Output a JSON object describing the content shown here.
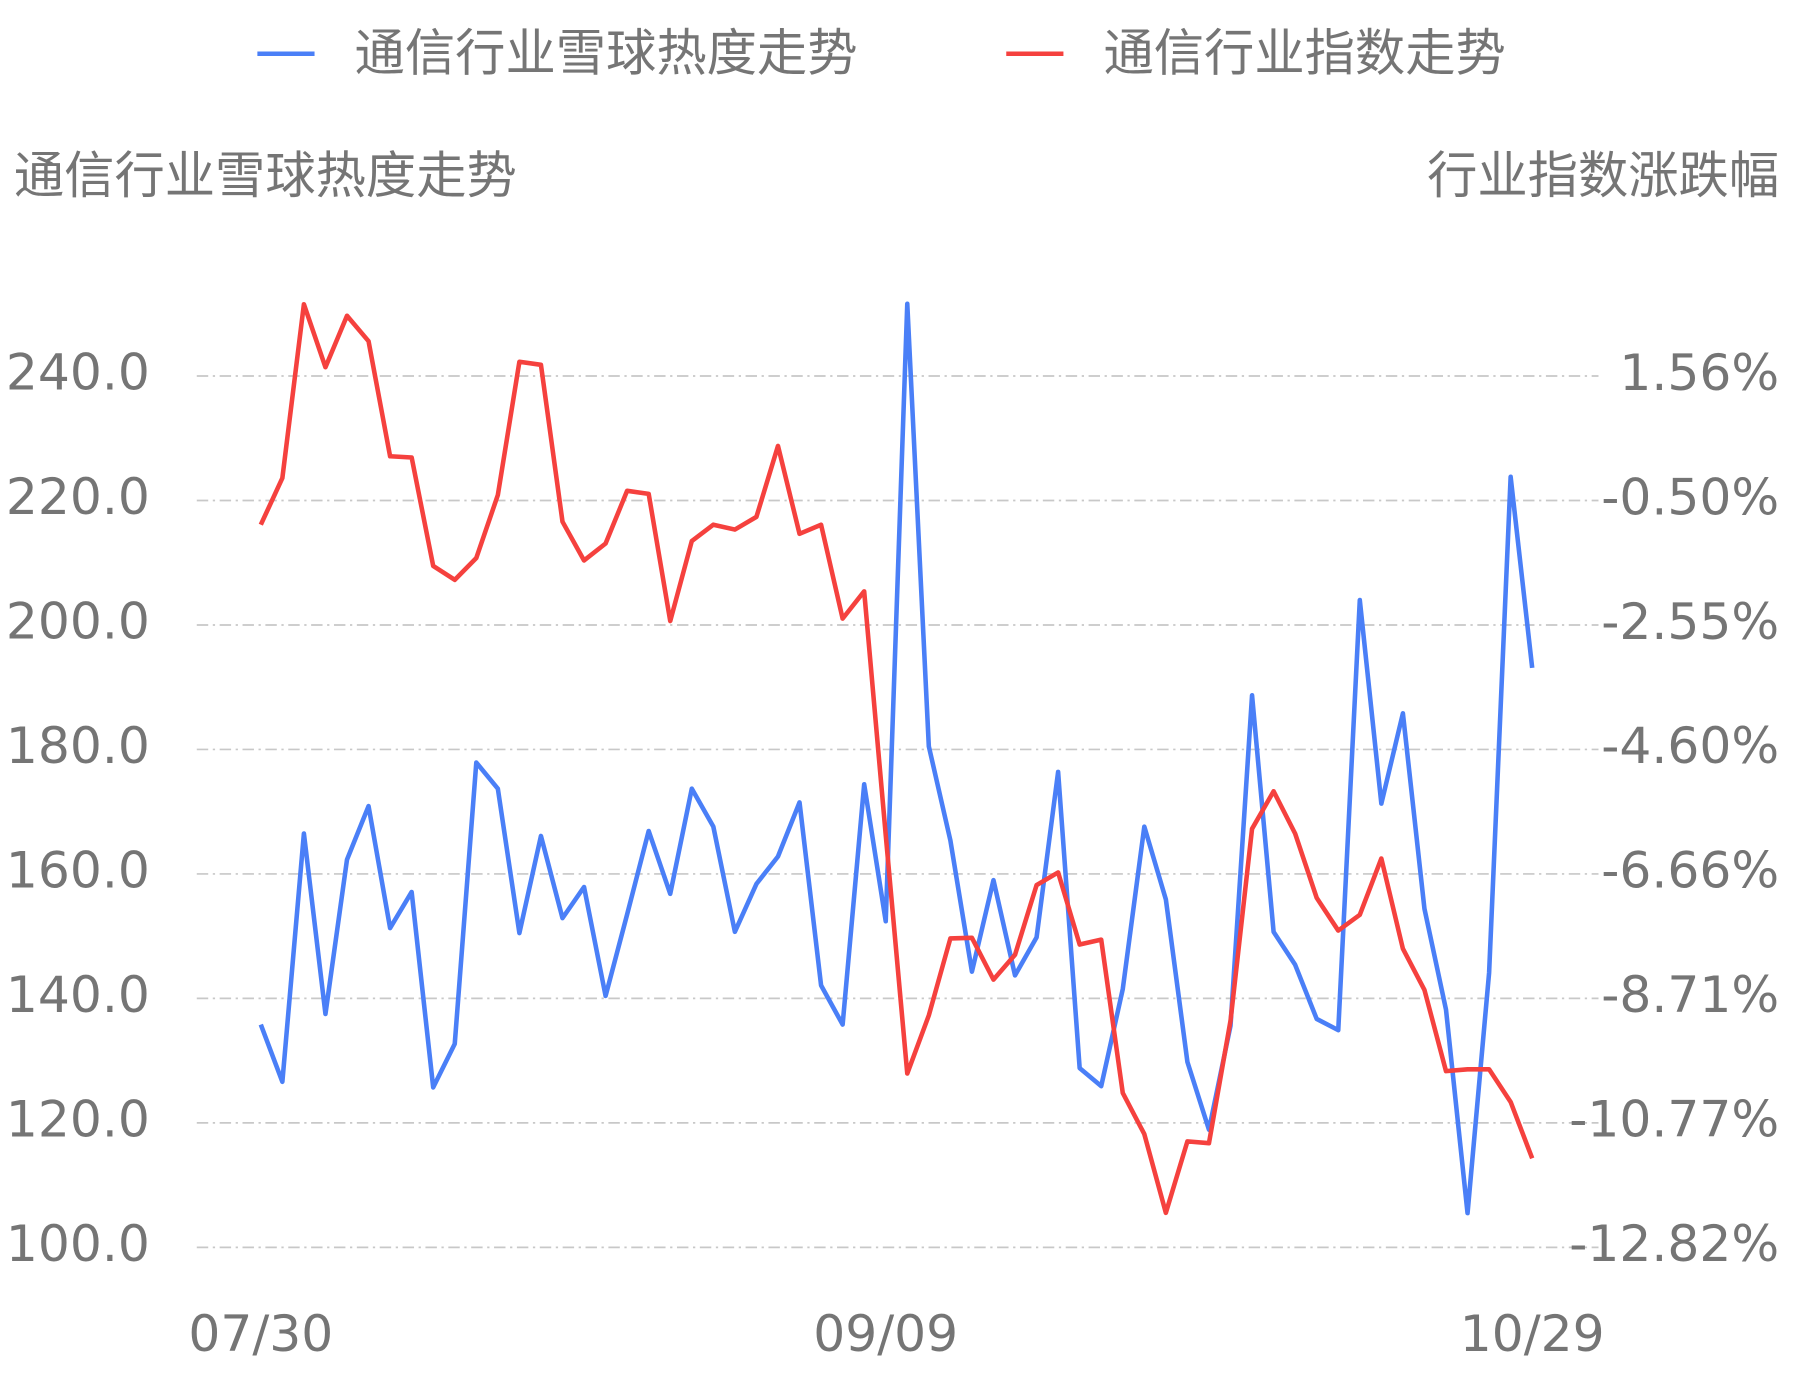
{
  "chart_data": {
    "type": "line",
    "y_label": "通信行业雪球热度走势",
    "y2_label": "行业指数涨跌幅",
    "categories": [
      "07/30",
      null,
      null,
      null,
      null,
      null,
      null,
      null,
      null,
      null,
      null,
      null,
      null,
      null,
      null,
      null,
      null,
      null,
      null,
      null,
      null,
      null,
      null,
      null,
      null,
      null,
      null,
      null,
      null,
      "09/09",
      null,
      null,
      null,
      null,
      null,
      null,
      null,
      null,
      null,
      null,
      null,
      null,
      null,
      null,
      null,
      null,
      null,
      null,
      null,
      null,
      null,
      null,
      null,
      null,
      null,
      null,
      null,
      null,
      null,
      "10/29"
    ],
    "series": [
      {
        "name": "通信行业雪球热度走势",
        "color": "#4a7ff7",
        "axis": "y",
        "values": [
          135.8,
          126.6,
          166.5,
          137.5,
          162.3,
          170.9,
          151.3,
          157.1,
          125.7,
          132.7,
          177.9,
          173.7,
          150.5,
          166.1,
          152.9,
          157.9,
          140.4,
          153.5,
          166.9,
          156.8,
          173.7,
          167.6,
          150.7,
          158.4,
          162.8,
          171.5,
          142.1,
          135.8,
          174.4,
          152.4,
          251.6,
          180.5,
          165.4,
          144.3,
          159.0,
          143.7,
          149.8,
          176.4,
          128.8,
          125.9,
          141.5,
          167.6,
          155.9,
          129.8,
          118.9,
          135.6,
          188.7,
          150.7,
          145.4,
          136.7,
          134.9,
          204.0,
          171.3,
          185.8,
          154.4,
          138.2,
          105.5,
          144.1,
          223.8,
          193.1
        ]
      },
      {
        "name": "通信行业指数走势",
        "color": "#f5413e",
        "axis": "y2",
        "values": [
          -0.89,
          -0.12,
          2.75,
          1.71,
          2.56,
          2.14,
          0.24,
          0.22,
          -1.57,
          -1.8,
          -1.44,
          -0.4,
          1.8,
          1.75,
          -0.84,
          -1.48,
          -1.2,
          -0.33,
          -0.38,
          -2.48,
          -1.16,
          -0.89,
          -0.97,
          -0.76,
          0.41,
          -1.04,
          -0.89,
          -2.44,
          -1.99,
          -6.01,
          -9.95,
          -8.99,
          -7.72,
          -7.71,
          -8.4,
          -7.99,
          -6.84,
          -6.63,
          -7.82,
          -7.74,
          -10.27,
          -10.95,
          -12.25,
          -11.07,
          -11.1,
          -9.08,
          -5.91,
          -5.29,
          -5.99,
          -7.05,
          -7.59,
          -7.33,
          -6.4,
          -7.89,
          -8.57,
          -9.91,
          -9.88,
          -9.88,
          -10.42,
          -11.35
        ]
      }
    ],
    "ylim": [
      100,
      260
    ],
    "yticks": [
      {
        "value": 100,
        "label": "100.0"
      },
      {
        "value": 120,
        "label": "120.0"
      },
      {
        "value": 140,
        "label": "140.0"
      },
      {
        "value": 160,
        "label": "160.0"
      },
      {
        "value": 180,
        "label": "180.0"
      },
      {
        "value": 200,
        "label": "200.0"
      },
      {
        "value": 220,
        "label": "220.0"
      },
      {
        "value": 240,
        "label": "240.0"
      }
    ],
    "y2lim": [
      -12.82,
      3.62
    ],
    "y2ticks": [
      {
        "value": -12.82,
        "label": "-12.82%"
      },
      {
        "value": -10.77,
        "label": "-10.77%"
      },
      {
        "value": -8.71,
        "label": "-8.71%"
      },
      {
        "value": -6.66,
        "label": "-6.66%"
      },
      {
        "value": -4.6,
        "label": "-4.60%"
      },
      {
        "value": -2.55,
        "label": "-2.55%"
      },
      {
        "value": -0.5,
        "label": "-0.50%"
      },
      {
        "value": 1.56,
        "label": "1.56%"
      }
    ],
    "grid": true,
    "legend": "top"
  }
}
